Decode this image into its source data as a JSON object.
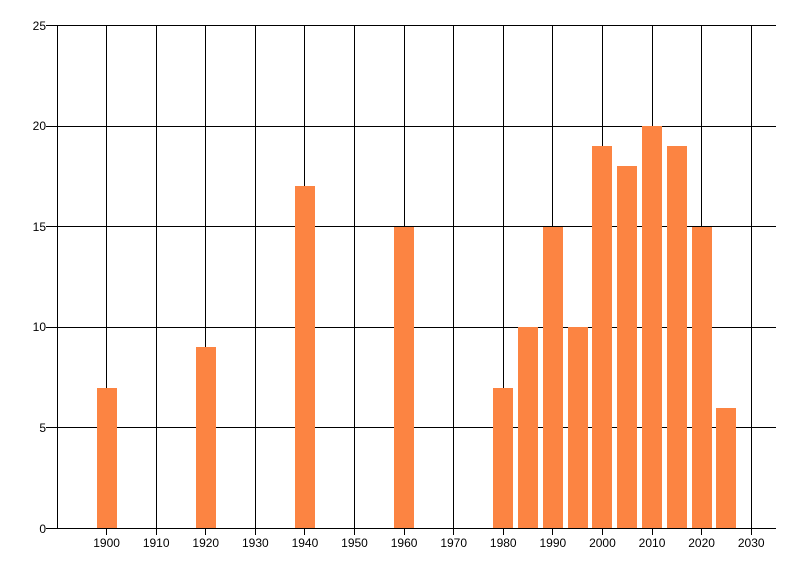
{
  "chart_data": {
    "type": "bar",
    "x": [
      1900,
      1920,
      1940,
      1960,
      1980,
      1985,
      1990,
      1995,
      2000,
      2005,
      2010,
      2015,
      2020,
      2025
    ],
    "values": [
      7,
      9,
      17,
      15,
      7,
      10,
      15,
      10,
      19,
      18,
      20,
      19,
      15,
      6
    ],
    "x_tick_labels": [
      "1900",
      "1910",
      "1920",
      "1930",
      "1940",
      "1950",
      "1960",
      "1970",
      "1980",
      "1990",
      "2000",
      "2010",
      "2020",
      "2030"
    ],
    "x_ticks": [
      1900,
      1910,
      1920,
      1930,
      1940,
      1950,
      1960,
      1970,
      1980,
      1990,
      2000,
      2010,
      2020,
      2030
    ],
    "y_tick_labels": [
      "0",
      "5",
      "10",
      "15",
      "20",
      "25"
    ],
    "y_ticks": [
      0,
      5,
      10,
      15,
      20,
      25
    ],
    "xlim": [
      1890,
      2035
    ],
    "ylim": [
      0,
      25
    ],
    "grid": true,
    "legend": false,
    "title": "",
    "xlabel": "",
    "ylabel": "",
    "bar_color": "#FC8442",
    "grid_color": "#000000",
    "text_color": "#000000",
    "background_color": "#FFFFFF"
  }
}
